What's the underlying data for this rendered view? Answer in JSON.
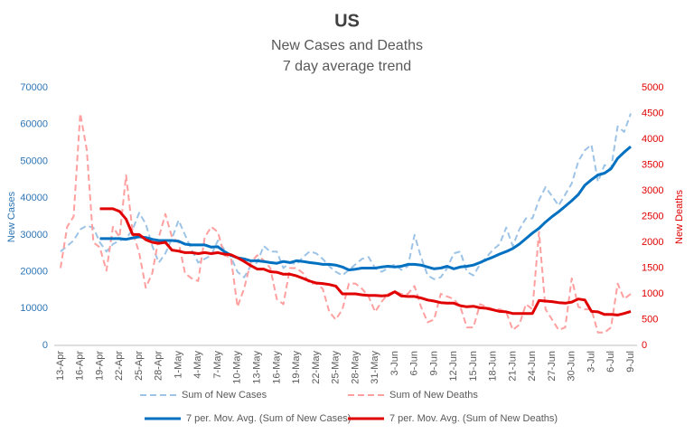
{
  "chart_data": {
    "type": "line",
    "title": "US",
    "subtitle": [
      "New Cases and Deaths",
      "7 day average trend"
    ],
    "y_label": "New Cases",
    "y2_label": "New Deaths",
    "ylim": [
      0,
      70000
    ],
    "yticks": [
      0,
      10000,
      20000,
      30000,
      40000,
      50000,
      60000,
      70000
    ],
    "y2lim": [
      0,
      5000
    ],
    "y2ticks": [
      0,
      500,
      1000,
      1500,
      2000,
      2500,
      3000,
      3500,
      4000,
      4500,
      5000
    ],
    "y_color": "#2e75b6",
    "y2_color": "#e00000",
    "grid": false,
    "legend": "bottom",
    "categories": [
      "13-Apr",
      null,
      null,
      "16-Apr",
      null,
      null,
      "19-Apr",
      null,
      null,
      "22-Apr",
      null,
      null,
      "25-Apr",
      null,
      null,
      "28-Apr",
      null,
      null,
      "1-May",
      null,
      null,
      "4-May",
      null,
      null,
      "7-May",
      null,
      null,
      "10-May",
      null,
      null,
      "13-May",
      null,
      null,
      "16-May",
      null,
      null,
      "19-May",
      null,
      null,
      "22-May",
      null,
      null,
      "25-May",
      null,
      null,
      "28-May",
      null,
      null,
      "31-May",
      null,
      null,
      "3-Jun",
      null,
      null,
      "6-Jun",
      null,
      null,
      "9-Jun",
      null,
      null,
      "12-Jun",
      null,
      null,
      "15-Jun",
      null,
      null,
      "18-Jun",
      null,
      null,
      "21-Jun",
      null,
      null,
      "24-Jun",
      null,
      null,
      "27-Jun",
      null,
      null,
      "30-Jun",
      null,
      null,
      "3-Jul",
      null,
      null,
      "6-Jul",
      null,
      null,
      "9-Jul"
    ],
    "series": [
      {
        "name": "Sum of New Cases",
        "color": "#9dc3e6",
        "style": "dashed",
        "axis": "y",
        "values": [
          25500,
          27000,
          28500,
          31500,
          32500,
          32000,
          28000,
          25500,
          27500,
          28500,
          29000,
          31500,
          36000,
          33000,
          27000,
          22500,
          25000,
          29000,
          34000,
          30000,
          26000,
          22500,
          23500,
          24500,
          28500,
          26000,
          24000,
          20000,
          18500,
          21500,
          22500,
          27000,
          25500,
          25500,
          21000,
          22500,
          22000,
          24000,
          25500,
          25000,
          23500,
          21500,
          20000,
          19000,
          20500,
          22000,
          23500,
          24000,
          21000,
          20000,
          21000,
          22000,
          20500,
          21500,
          30000,
          24000,
          19000,
          18000,
          18500,
          21000,
          25000,
          25500,
          20000,
          19000,
          22000,
          24000,
          26000,
          27500,
          32000,
          27000,
          31500,
          34500,
          34500,
          39500,
          43000,
          40500,
          38000,
          41000,
          44000,
          50000,
          53000,
          54500,
          44500,
          49000,
          48000,
          59500,
          58000,
          63000
        ]
      },
      {
        "name": "Sum of New Deaths",
        "color": "#ff9f9f",
        "style": "dashed",
        "axis": "y2",
        "values": [
          1500,
          2300,
          2500,
          4500,
          3800,
          2000,
          1900,
          1450,
          2300,
          2100,
          3300,
          2200,
          1800,
          1120,
          1400,
          2100,
          2550,
          2100,
          2000,
          1400,
          1300,
          1250,
          2100,
          2300,
          2200,
          1750,
          1700,
          750,
          1100,
          1600,
          1750,
          1650,
          1500,
          900,
          800,
          1500,
          1500,
          1400,
          1200,
          1200,
          1100,
          650,
          500,
          700,
          1200,
          1200,
          1100,
          950,
          650,
          850,
          1000,
          1050,
          1000,
          1000,
          1150,
          750,
          450,
          500,
          1000,
          950,
          900,
          750,
          350,
          350,
          800,
          750,
          700,
          700,
          650,
          300,
          400,
          800,
          700,
          2200,
          700,
          500,
          300,
          350,
          1300,
          750,
          700,
          700,
          250,
          250,
          350,
          1200,
          900,
          1000
        ]
      },
      {
        "name": "7 per. Mov. Avg. (Sum of New Cases)",
        "color": "#0070c0",
        "style": "solid",
        "axis": "y",
        "values": [
          null,
          null,
          null,
          null,
          null,
          null,
          29000,
          29000,
          29000,
          29000,
          28800,
          29200,
          29500,
          29300,
          28800,
          28500,
          28500,
          28500,
          28300,
          27500,
          27300,
          27300,
          27300,
          26700,
          26800,
          25500,
          24500,
          23800,
          23500,
          23000,
          23000,
          22800,
          22500,
          22300,
          22800,
          22500,
          23000,
          22800,
          22500,
          22300,
          22000,
          22000,
          21800,
          21300,
          20500,
          20700,
          21000,
          21000,
          21000,
          21300,
          21500,
          21300,
          21500,
          22000,
          22000,
          21800,
          21300,
          20800,
          21000,
          21500,
          20800,
          21300,
          21500,
          21800,
          22500,
          23300,
          24000,
          24800,
          25500,
          26300,
          27500,
          29000,
          30500,
          31800,
          33500,
          35000,
          36300,
          37800,
          39300,
          41000,
          43500,
          45000,
          46300,
          46800,
          48000,
          50800,
          52500,
          54000
        ]
      },
      {
        "name": "7 per. Mov. Avg. (Sum of New Deaths)",
        "color": "#e00000",
        "style": "solid",
        "axis": "y2",
        "values": [
          null,
          null,
          null,
          null,
          null,
          null,
          2650,
          2650,
          2650,
          2600,
          2450,
          2150,
          2150,
          2050,
          2000,
          1980,
          2000,
          1850,
          1830,
          1800,
          1800,
          1780,
          1800,
          1780,
          1800,
          1770,
          1760,
          1700,
          1630,
          1550,
          1480,
          1480,
          1430,
          1420,
          1380,
          1380,
          1350,
          1300,
          1250,
          1210,
          1200,
          1180,
          1150,
          1000,
          1000,
          1000,
          980,
          970,
          970,
          960,
          970,
          1040,
          960,
          950,
          950,
          920,
          880,
          860,
          830,
          820,
          820,
          770,
          750,
          760,
          730,
          720,
          690,
          660,
          650,
          620,
          620,
          620,
          620,
          870,
          860,
          850,
          830,
          820,
          840,
          900,
          880,
          660,
          650,
          600,
          600,
          590,
          620,
          660
        ]
      }
    ]
  }
}
